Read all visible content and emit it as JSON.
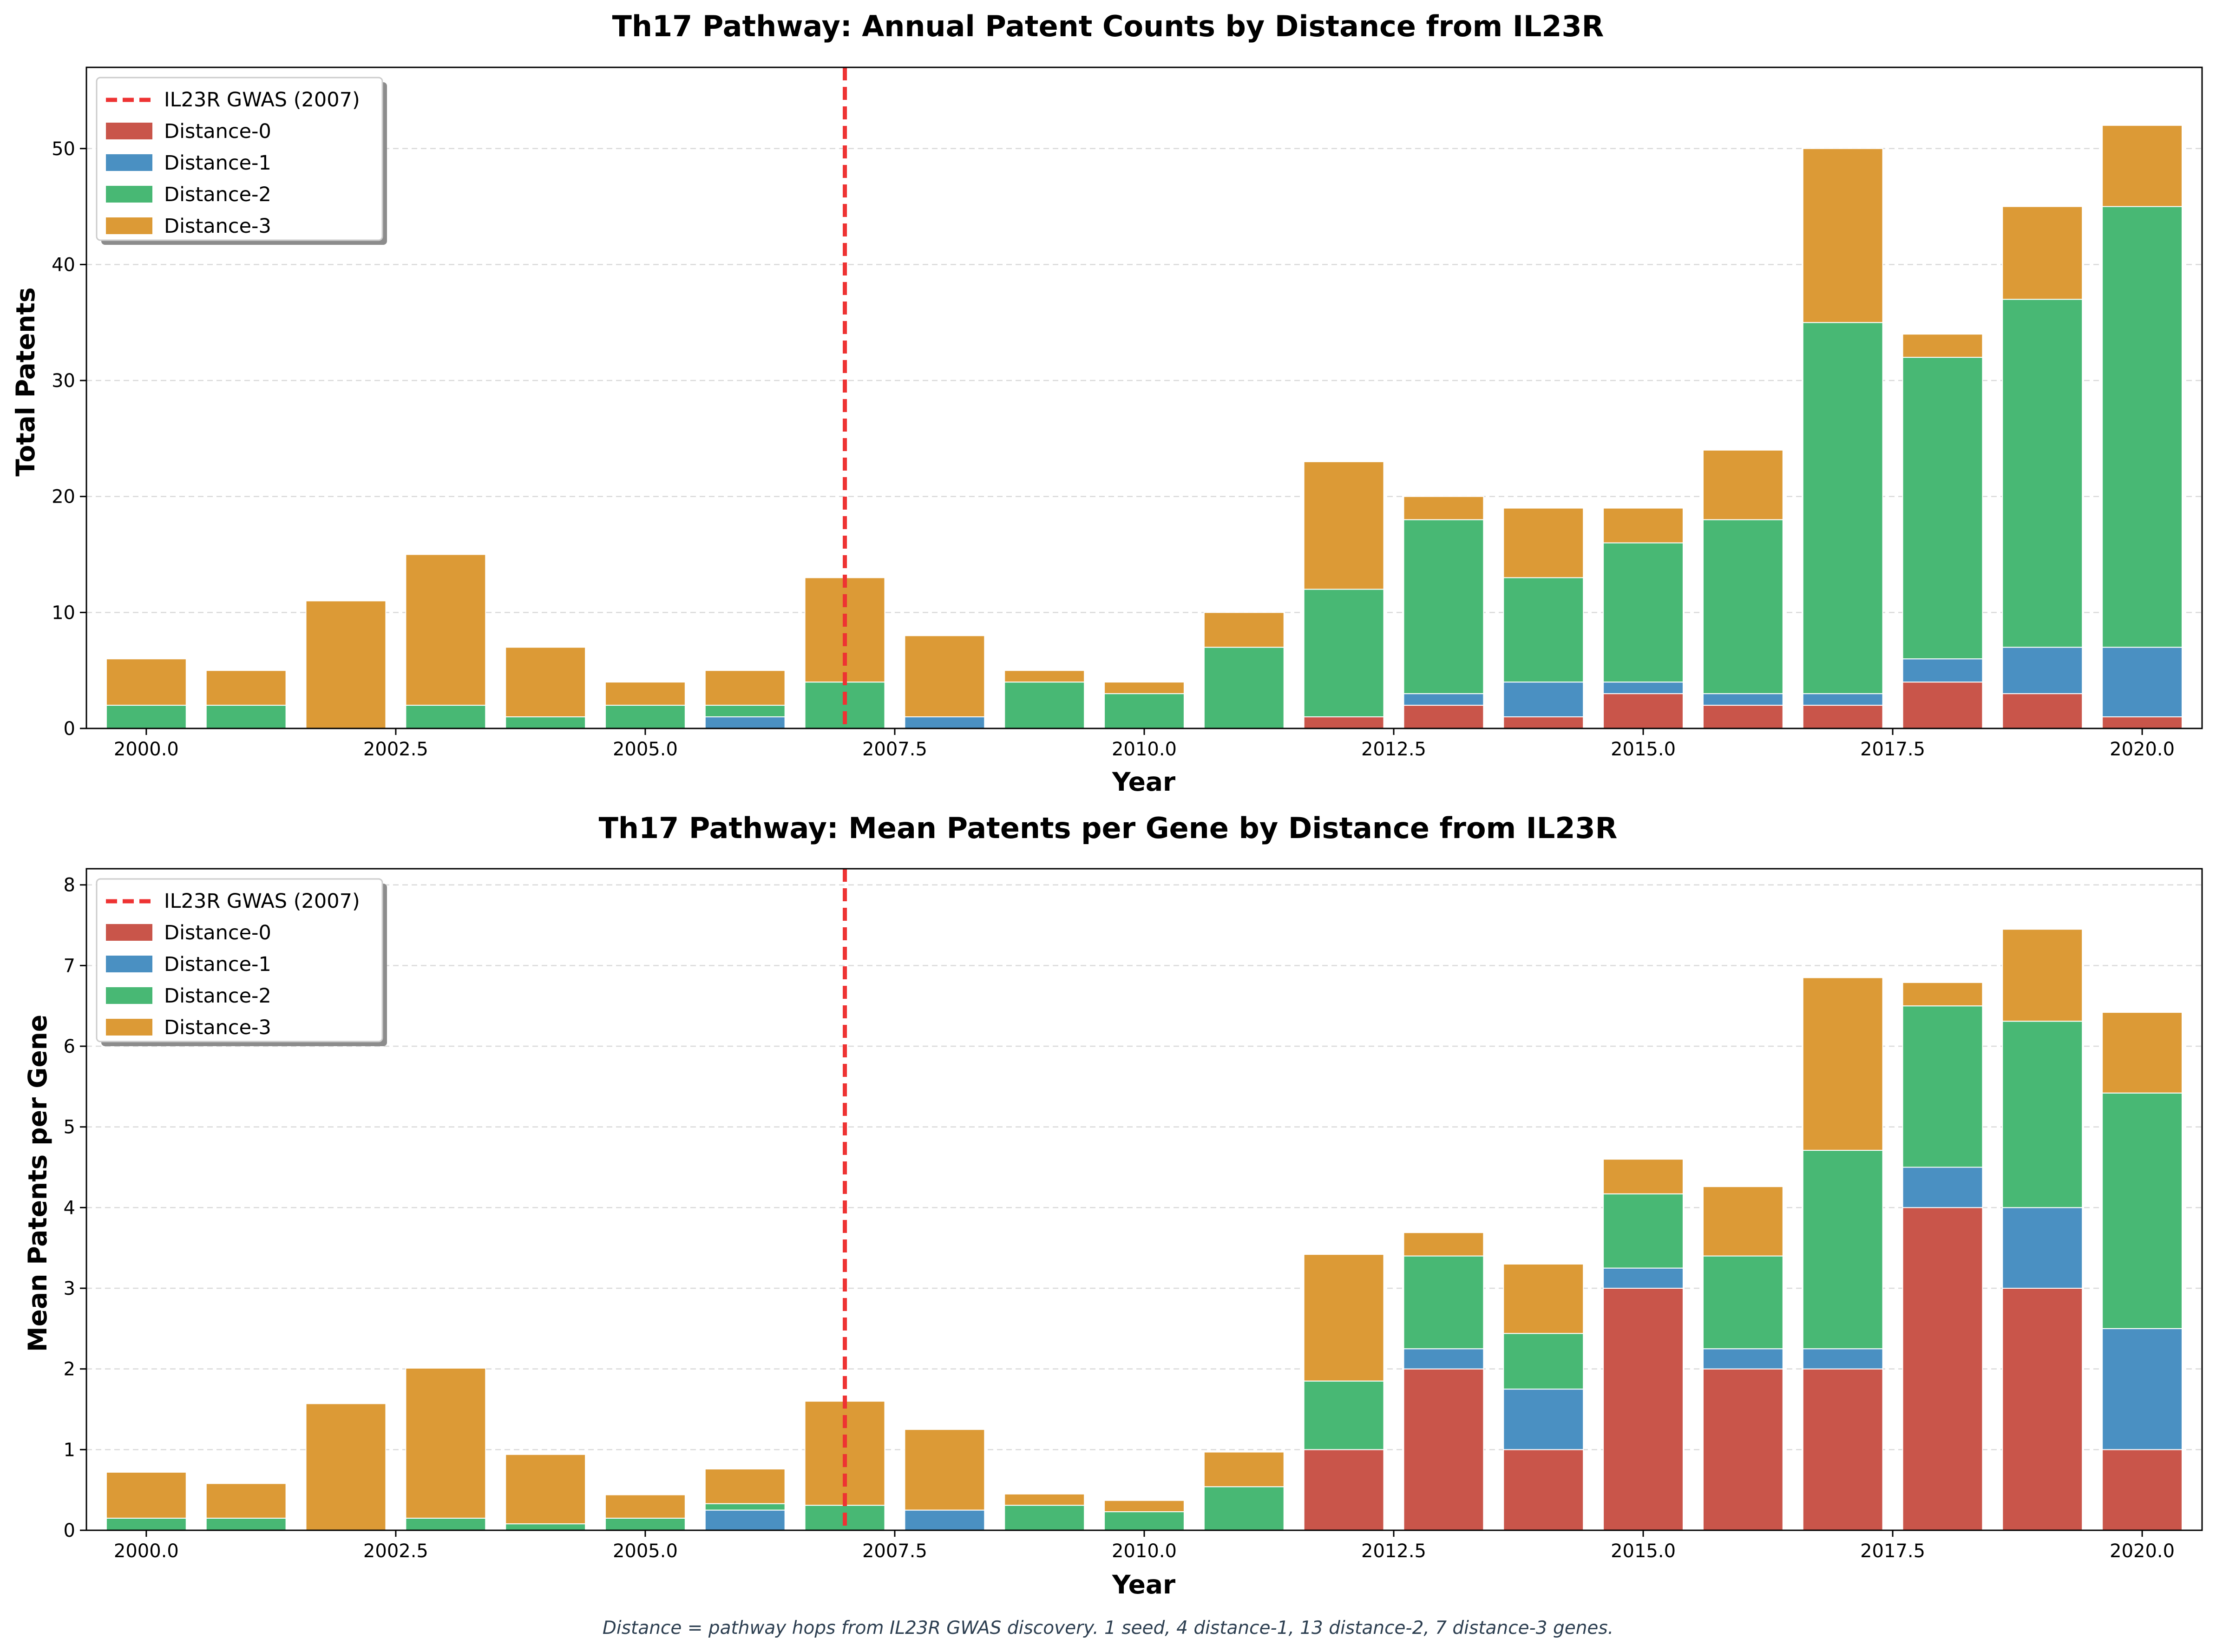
{
  "colors": {
    "distance0": "#c9554a",
    "distance1": "#4a90c2",
    "distance2": "#48b874",
    "distance3": "#dc9a36",
    "gwas_line": "#ee3333",
    "grid": "#d9d9d9"
  },
  "footnote": "Distance = pathway hops from IL23R GWAS discovery. 1 seed, 4 distance-1, 13 distance-2, 7 distance-3 genes.",
  "chart_data": [
    {
      "type": "bar",
      "stacked": true,
      "title": "Th17 Pathway: Annual Patent Counts by Distance from IL23R",
      "xlabel": "Year",
      "ylabel": "Total Patents",
      "xlim": [
        1999.4,
        2020.6
      ],
      "ylim": [
        0,
        57
      ],
      "xticks": [
        "2000.0",
        "2002.5",
        "2005.0",
        "2007.5",
        "2010.0",
        "2012.5",
        "2015.0",
        "2017.5",
        "2020.0"
      ],
      "yticks": [
        "0",
        "10",
        "20",
        "30",
        "40",
        "50"
      ],
      "grid": true,
      "legend_position": "top-left",
      "vline": {
        "x": 2007,
        "label": "IL23R GWAS (2007)"
      },
      "x": [
        2000,
        2001,
        2002,
        2003,
        2004,
        2005,
        2006,
        2007,
        2008,
        2009,
        2010,
        2011,
        2012,
        2013,
        2014,
        2015,
        2016,
        2017,
        2018,
        2019,
        2020
      ],
      "series": [
        {
          "name": "Distance-0",
          "values": [
            0,
            0,
            0,
            0,
            0,
            0,
            0,
            0,
            0,
            0,
            0,
            0,
            1,
            2,
            1,
            3,
            2,
            2,
            4,
            3,
            1
          ]
        },
        {
          "name": "Distance-1",
          "values": [
            0,
            0,
            0,
            0,
            0,
            0,
            1,
            0,
            1,
            0,
            0,
            0,
            0,
            1,
            3,
            1,
            1,
            1,
            2,
            4,
            6
          ]
        },
        {
          "name": "Distance-2",
          "values": [
            2,
            2,
            0,
            2,
            1,
            2,
            1,
            4,
            0,
            4,
            3,
            7,
            11,
            15,
            9,
            12,
            15,
            32,
            26,
            30,
            38
          ]
        },
        {
          "name": "Distance-3",
          "values": [
            4,
            3,
            11,
            13,
            6,
            2,
            3,
            9,
            7,
            1,
            1,
            3,
            11,
            2,
            6,
            3,
            6,
            15,
            2,
            8,
            7
          ]
        }
      ]
    },
    {
      "type": "bar",
      "stacked": true,
      "title": "Th17 Pathway: Mean Patents per Gene by Distance from IL23R",
      "xlabel": "Year",
      "ylabel": "Mean Patents per Gene",
      "xlim": [
        1999.4,
        2020.6
      ],
      "ylim": [
        0,
        8.2
      ],
      "xticks": [
        "2000.0",
        "2002.5",
        "2005.0",
        "2007.5",
        "2010.0",
        "2012.5",
        "2015.0",
        "2017.5",
        "2020.0"
      ],
      "yticks": [
        "0",
        "1",
        "2",
        "3",
        "4",
        "5",
        "6",
        "7",
        "8"
      ],
      "grid": true,
      "legend_position": "top-left",
      "vline": {
        "x": 2007,
        "label": "IL23R GWAS (2007)"
      },
      "x": [
        2000,
        2001,
        2002,
        2003,
        2004,
        2005,
        2006,
        2007,
        2008,
        2009,
        2010,
        2011,
        2012,
        2013,
        2014,
        2015,
        2016,
        2017,
        2018,
        2019,
        2020
      ],
      "series": [
        {
          "name": "Distance-0",
          "values": [
            0,
            0,
            0,
            0,
            0,
            0,
            0,
            0,
            0,
            0,
            0,
            0,
            1,
            2,
            1,
            3,
            2,
            2,
            4,
            3,
            1
          ]
        },
        {
          "name": "Distance-1",
          "values": [
            0,
            0,
            0,
            0,
            0,
            0,
            0.25,
            0,
            0.25,
            0,
            0,
            0,
            0,
            0.25,
            0.75,
            0.25,
            0.25,
            0.25,
            0.5,
            1,
            1.5
          ]
        },
        {
          "name": "Distance-2",
          "values": [
            0.15,
            0.15,
            0,
            0.15,
            0.08,
            0.15,
            0.08,
            0.31,
            0,
            0.31,
            0.23,
            0.54,
            0.85,
            1.15,
            0.69,
            0.92,
            1.15,
            2.46,
            2,
            2.31,
            2.92
          ]
        },
        {
          "name": "Distance-3",
          "values": [
            0.57,
            0.43,
            1.57,
            1.86,
            0.86,
            0.29,
            0.43,
            1.29,
            1,
            0.14,
            0.14,
            0.43,
            1.57,
            0.29,
            0.86,
            0.43,
            0.86,
            2.14,
            0.29,
            1.14,
            1
          ]
        }
      ]
    }
  ]
}
